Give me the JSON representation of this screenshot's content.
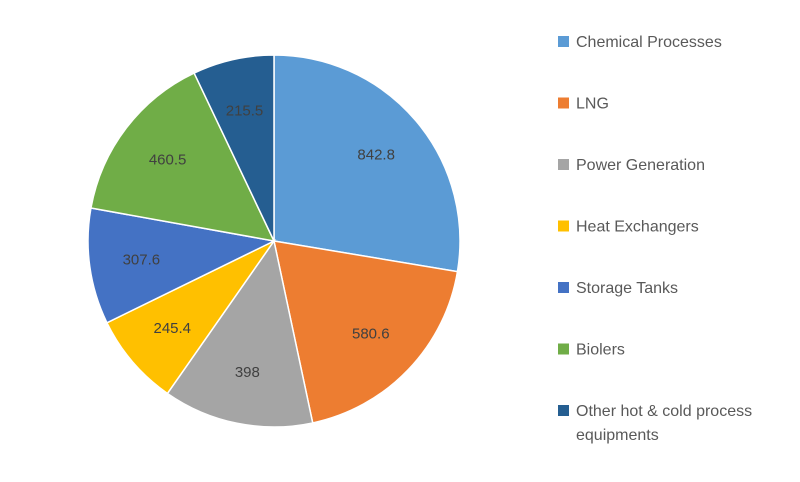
{
  "chart_data": {
    "type": "pie",
    "categories": [
      "Chemical Processes",
      "LNG",
      "Power Generation",
      "Heat Exchangers",
      "Storage Tanks",
      "Biolers",
      "Other hot & cold process equipments"
    ],
    "values": [
      842.8,
      580.6,
      398,
      245.4,
      307.6,
      460.5,
      215.5
    ],
    "value_labels": [
      "842.8",
      "580.6",
      "398",
      "245.4",
      "307.6",
      "460.5",
      "215.5"
    ],
    "colors": [
      "#5B9BD5",
      "#ED7D31",
      "#A5A5A5",
      "#FFC000",
      "#4472C4",
      "#70AD47",
      "#255E91"
    ],
    "start_angle": "12 o'clock",
    "direction": "clockwise",
    "legend_position": "right",
    "title": ""
  }
}
